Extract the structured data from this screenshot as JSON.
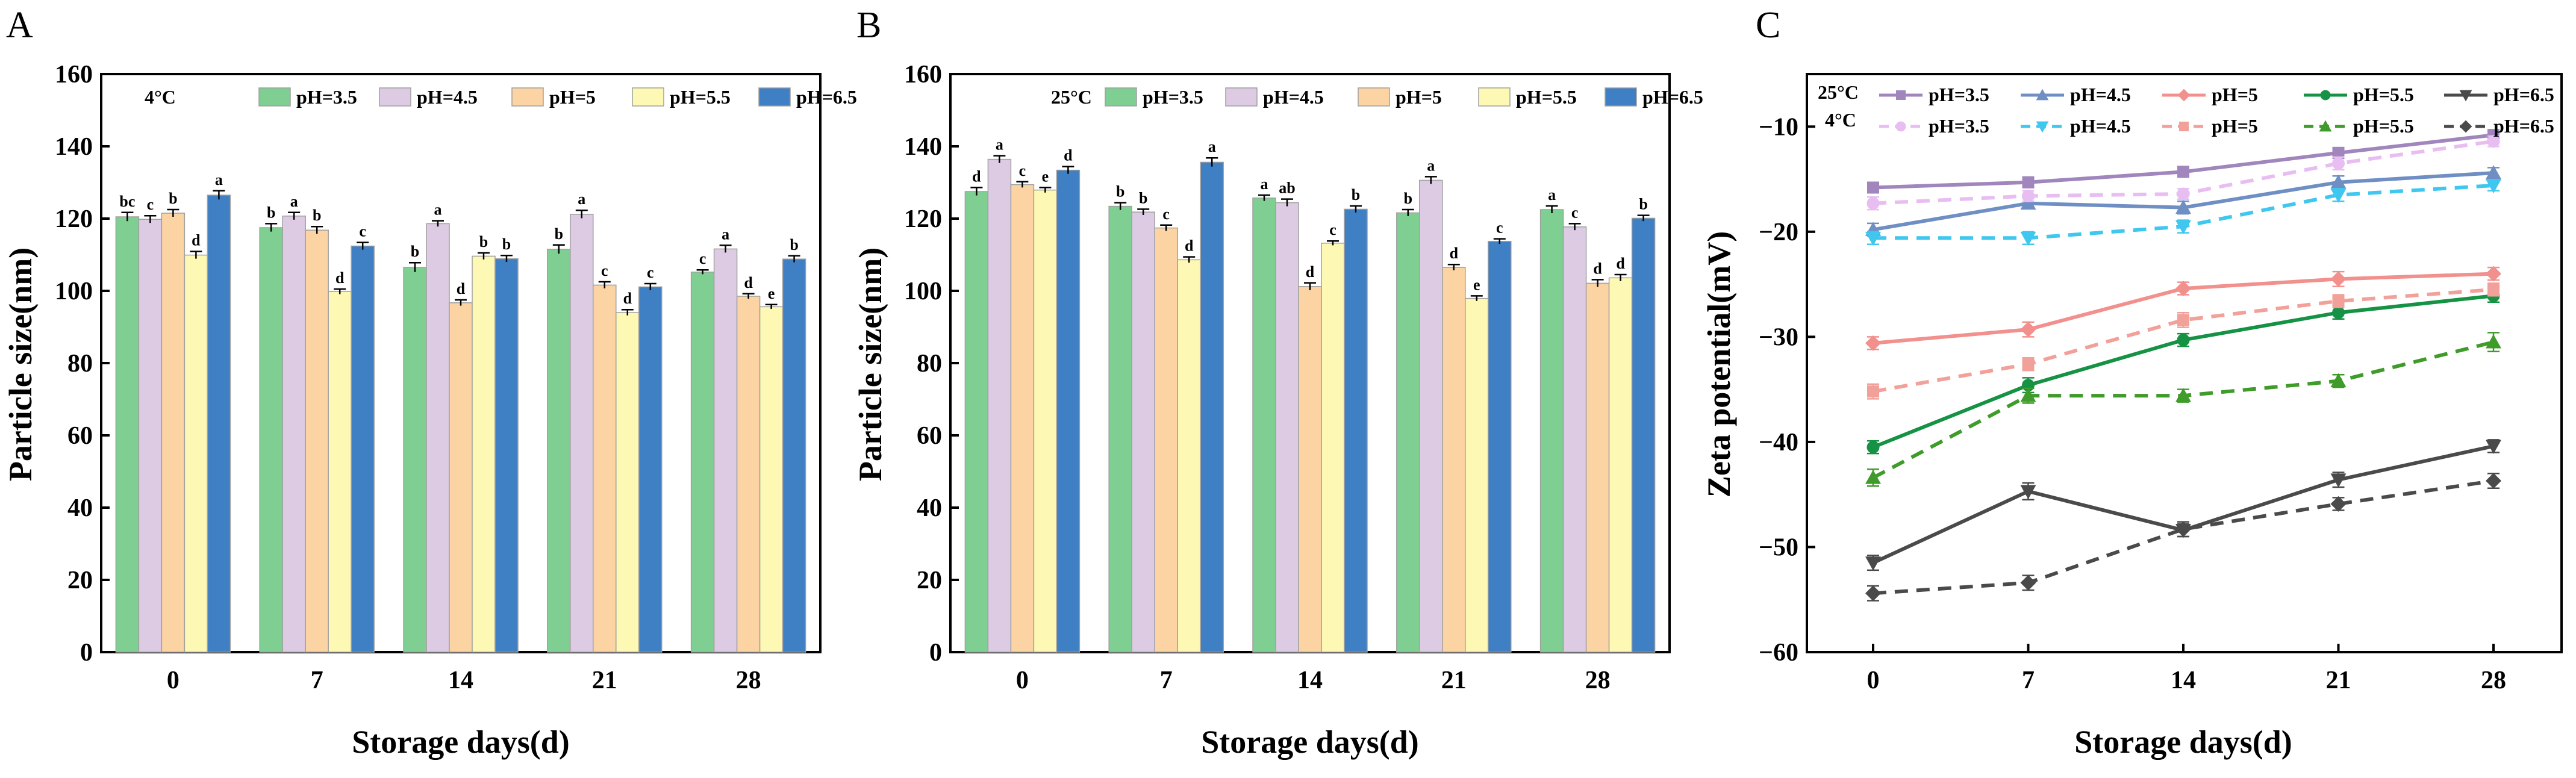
{
  "chart_data": [
    {
      "panel": "A",
      "type": "bar",
      "temperature": "4°C",
      "categories": [
        "0",
        "7",
        "14",
        "21",
        "28"
      ],
      "xlabel": "Storage days(d)",
      "ylabel": "Particle size(nm)",
      "ylim": [
        0,
        160
      ],
      "yticks": [
        "0",
        "20",
        "40",
        "60",
        "80",
        "100",
        "120",
        "140",
        "160"
      ],
      "legend_position": "top",
      "series": [
        {
          "name": "pH=3.5",
          "color": "#7fce92",
          "values": [
            120.5,
            117.5,
            106.5,
            111.5,
            105.2
          ],
          "errors": [
            1.2,
            1.1,
            1.3,
            1.2,
            0.6
          ],
          "labels": [
            "bc",
            "b",
            "b",
            "b",
            "c"
          ]
        },
        {
          "name": "pH=4.5",
          "color": "#dccbe2",
          "values": [
            119.8,
            120.7,
            118.6,
            121.2,
            111.6
          ],
          "errors": [
            1.0,
            1.0,
            0.8,
            1.1,
            1.0
          ],
          "labels": [
            "c",
            "a",
            "a",
            "a",
            "a"
          ]
        },
        {
          "name": "pH=5",
          "color": "#fcd3a2",
          "values": [
            121.5,
            116.8,
            96.7,
            101.6,
            98.5
          ],
          "errors": [
            1.0,
            1.0,
            0.8,
            0.9,
            0.7
          ],
          "labels": [
            "b",
            "b",
            "d",
            "c",
            "d"
          ]
        },
        {
          "name": "pH=5.5",
          "color": "#fdf8b3",
          "values": [
            109.9,
            99.8,
            109.6,
            94.0,
            95.6
          ],
          "errors": [
            1.0,
            0.7,
            0.9,
            0.8,
            0.6
          ],
          "labels": [
            "d",
            "d",
            "b",
            "d",
            "e"
          ]
        },
        {
          "name": "pH=6.5",
          "color": "#3f7fc4",
          "values": [
            126.5,
            112.4,
            108.9,
            101.1,
            108.8
          ],
          "errors": [
            1.2,
            1.0,
            0.9,
            0.9,
            0.9
          ],
          "labels": [
            "a",
            "c",
            "b",
            "c",
            "b"
          ]
        }
      ]
    },
    {
      "panel": "B",
      "type": "bar",
      "temperature": "25°C",
      "categories": [
        "0",
        "7",
        "14",
        "21",
        "28"
      ],
      "xlabel": "Storage days(d)",
      "ylabel": "Particle size(nm)",
      "ylim": [
        0,
        160
      ],
      "yticks": [
        "0",
        "20",
        "40",
        "60",
        "80",
        "100",
        "120",
        "140",
        "160"
      ],
      "legend_position": "top",
      "series": [
        {
          "name": "pH=3.5",
          "color": "#7fce92",
          "values": [
            127.5,
            123.4,
            125.7,
            121.6,
            122.5
          ],
          "errors": [
            1.1,
            1.0,
            0.8,
            0.9,
            1.0
          ],
          "labels": [
            "d",
            "b",
            "a",
            "b",
            "a"
          ]
        },
        {
          "name": "pH=4.5",
          "color": "#dccbe2",
          "values": [
            136.4,
            121.8,
            124.4,
            130.6,
            117.7
          ],
          "errors": [
            1.0,
            0.8,
            1.0,
            1.0,
            0.9
          ],
          "labels": [
            "a",
            "b",
            "ab",
            "a",
            "c"
          ]
        },
        {
          "name": "pH=5",
          "color": "#fcd3a2",
          "values": [
            129.4,
            117.4,
            101.2,
            106.5,
            102.1
          ],
          "errors": [
            0.8,
            0.8,
            1.0,
            0.8,
            1.0
          ],
          "labels": [
            "c",
            "c",
            "d",
            "d",
            "d"
          ]
        },
        {
          "name": "pH=5.5",
          "color": "#fdf8b3",
          "values": [
            127.9,
            108.6,
            113.2,
            97.9,
            103.6
          ],
          "errors": [
            0.7,
            0.8,
            0.6,
            0.7,
            0.9
          ],
          "labels": [
            "e",
            "d",
            "c",
            "e",
            "d"
          ]
        },
        {
          "name": "pH=6.5",
          "color": "#3f7fc4",
          "values": [
            133.4,
            135.6,
            122.6,
            113.7,
            120.1
          ],
          "errors": [
            1.0,
            1.2,
            0.9,
            0.7,
            0.8
          ],
          "labels": [
            "d",
            "a",
            "b",
            "c",
            "b"
          ]
        }
      ]
    },
    {
      "panel": "C",
      "type": "line",
      "x": [
        "0",
        "7",
        "14",
        "21",
        "28"
      ],
      "xlabel": "Storage days(d)",
      "ylabel": "Zeta potential(mV)",
      "ylim": [
        -60,
        -5
      ],
      "yticks": [
        "−60",
        "−50",
        "−40",
        "−30",
        "−20",
        "−10"
      ],
      "legend_position": "top",
      "legend_groups": [
        "25°C",
        "4°C"
      ],
      "series": [
        {
          "group": "25°C",
          "name": "pH=3.5",
          "color": "#a086bd",
          "dashed": false,
          "marker": "square",
          "values": [
            -15.8,
            -15.3,
            -14.3,
            -12.5,
            -10.8
          ],
          "errors": [
            0.5,
            0.5,
            0.5,
            0.5,
            0.5
          ]
        },
        {
          "group": "25°C",
          "name": "pH=4.5",
          "color": "#6f8fc4",
          "dashed": false,
          "marker": "triangle-up",
          "values": [
            -19.8,
            -17.3,
            -17.7,
            -15.3,
            -14.4
          ],
          "errors": [
            0.6,
            0.5,
            0.6,
            0.6,
            0.5
          ]
        },
        {
          "group": "25°C",
          "name": "pH=5",
          "color": "#f2908e",
          "dashed": false,
          "marker": "diamond",
          "values": [
            -30.6,
            -29.3,
            -25.4,
            -24.5,
            -24.0
          ],
          "errors": [
            0.6,
            0.7,
            0.6,
            0.7,
            0.6
          ]
        },
        {
          "group": "25°C",
          "name": "pH=5.5",
          "color": "#159244",
          "dashed": false,
          "marker": "circle",
          "values": [
            -40.5,
            -34.6,
            -30.3,
            -27.7,
            -26.1
          ],
          "errors": [
            0.6,
            0.7,
            0.6,
            0.6,
            0.6
          ]
        },
        {
          "group": "25°C",
          "name": "pH=6.5",
          "color": "#4a4a4a",
          "dashed": false,
          "marker": "triangle-down",
          "values": [
            -51.5,
            -44.7,
            -48.4,
            -43.6,
            -40.4
          ],
          "errors": [
            0.7,
            0.8,
            0.6,
            0.7,
            0.6
          ]
        },
        {
          "group": "4°C",
          "name": "pH=3.5",
          "color": "#e8bdf2",
          "dashed": true,
          "marker": "circle",
          "values": [
            -17.3,
            -16.6,
            -16.4,
            -13.5,
            -11.4
          ],
          "errors": [
            0.6,
            0.5,
            0.5,
            0.6,
            0.5
          ]
        },
        {
          "group": "4°C",
          "name": "pH=4.5",
          "color": "#3fc7f0",
          "dashed": true,
          "marker": "triangle-down",
          "values": [
            -20.6,
            -20.6,
            -19.5,
            -16.5,
            -15.6
          ],
          "errors": [
            0.6,
            0.6,
            0.6,
            0.6,
            0.5
          ]
        },
        {
          "group": "4°C",
          "name": "pH=5",
          "color": "#f2a09a",
          "dashed": true,
          "marker": "square",
          "values": [
            -35.2,
            -32.6,
            -28.4,
            -26.6,
            -25.5
          ],
          "errors": [
            0.7,
            0.6,
            0.7,
            0.6,
            0.6
          ]
        },
        {
          "group": "4°C",
          "name": "pH=5.5",
          "color": "#3f9b2a",
          "dashed": true,
          "marker": "triangle-up",
          "values": [
            -43.4,
            -35.6,
            -35.6,
            -34.2,
            -30.5
          ],
          "errors": [
            0.8,
            0.7,
            0.6,
            0.6,
            0.9
          ]
        },
        {
          "group": "4°C",
          "name": "pH=6.5",
          "color": "#4a4a4a",
          "dashed": true,
          "marker": "diamond",
          "values": [
            -54.4,
            -53.4,
            -48.3,
            -45.9,
            -43.7
          ],
          "errors": [
            0.7,
            0.7,
            0.7,
            0.6,
            0.7
          ]
        }
      ]
    }
  ]
}
